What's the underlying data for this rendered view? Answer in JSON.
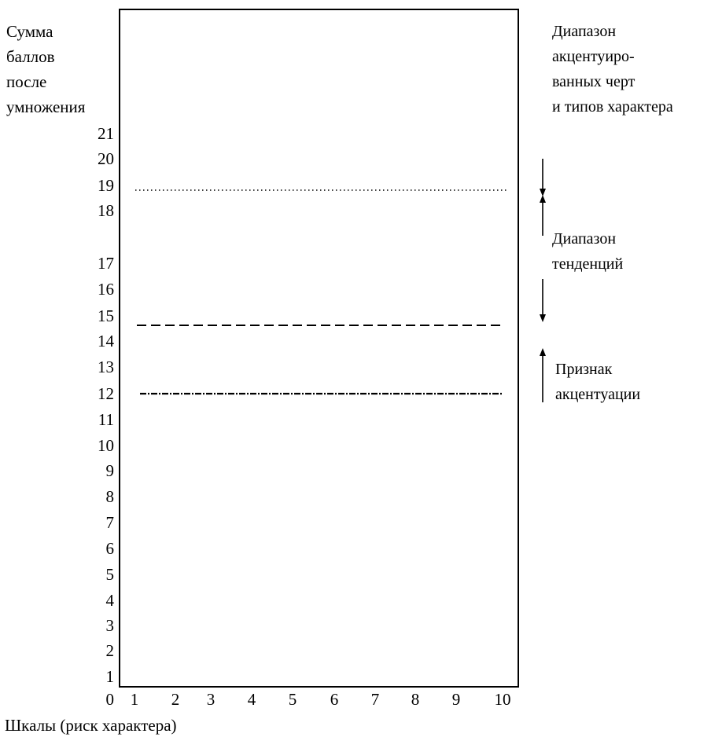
{
  "chart_data": {
    "type": "line",
    "ylabel_lines": [
      "Сумма",
      "баллов",
      "после",
      "умножения"
    ],
    "xlabel": "Шкалы (риск характера)",
    "right_title_lines": [
      "Диапазон",
      "акцентуиро-",
      "ванных черт",
      "и типов характера"
    ],
    "y_ticks": [
      0,
      1,
      2,
      3,
      4,
      5,
      6,
      7,
      8,
      9,
      10,
      11,
      12,
      13,
      14,
      15,
      16,
      17,
      18,
      19,
      20,
      21
    ],
    "x_ticks": [
      1,
      2,
      3,
      4,
      5,
      6,
      7,
      8,
      9,
      10
    ],
    "xlim": [
      0,
      10
    ],
    "ylim": [
      0,
      21
    ],
    "reference_lines": [
      {
        "y": 19,
        "style": "dotted"
      },
      {
        "y": 15,
        "style": "dashed"
      },
      {
        "y": 12,
        "style": "dash-dot"
      }
    ],
    "zones": [
      {
        "lines": [
          "Диапазон",
          "тенденций"
        ],
        "y_from": 19,
        "y_to": 15
      },
      {
        "lines": [
          "Признак",
          "акцентуации"
        ],
        "y_from": 14,
        "y_to": 12
      }
    ]
  }
}
